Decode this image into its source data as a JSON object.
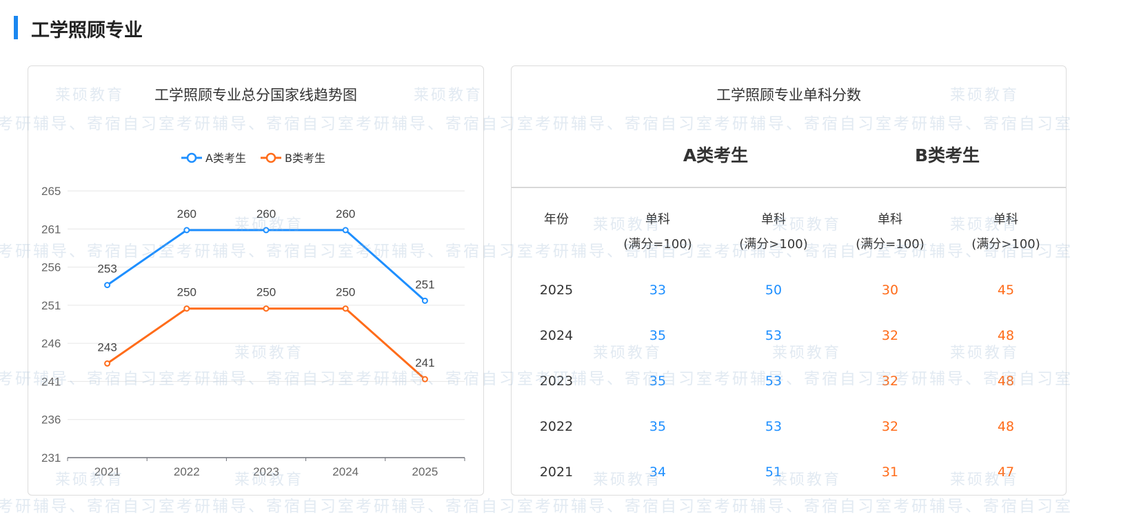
{
  "page": {
    "title": "工学照顾专业"
  },
  "colors": {
    "accent": "#1a87f0",
    "seriesA": "#1e8fff",
    "seriesB": "#ff6c1a"
  },
  "watermark": {
    "brand": "莱硕教育",
    "slogan": "考研辅导、寄宿自习室考研辅导、寄宿自习室考研辅导、寄宿自习室考研辅导、寄宿自习室考研辅导、寄宿自习室考研辅导、寄宿自习室"
  },
  "chart_data": {
    "type": "line",
    "title": "工学照顾专业总分国家线趋势图",
    "categories": [
      "2021",
      "2022",
      "2023",
      "2024",
      "2025"
    ],
    "series": [
      {
        "name": "A类考生",
        "values": [
          253,
          260,
          260,
          260,
          251
        ]
      },
      {
        "name": "B类考生",
        "values": [
          243,
          250,
          250,
          250,
          241
        ]
      }
    ],
    "yticks": [
      "231",
      "236",
      "241",
      "246",
      "251",
      "256",
      "261",
      "265"
    ],
    "ylim": [
      231,
      265
    ],
    "grid": true,
    "legend": "top-center",
    "data_labels": true
  },
  "table": {
    "title": "工学照顾专业单科分数",
    "groups": [
      "A类考生",
      "B类考生"
    ],
    "headers": [
      {
        "line1": "年份",
        "line2": ""
      },
      {
        "line1": "单科",
        "line2": "(满分=100)"
      },
      {
        "line1": "单科",
        "line2": "(满分>100)"
      },
      {
        "line1": "单科",
        "line2": "(满分=100)"
      },
      {
        "line1": "单科",
        "line2": "(满分>100)"
      }
    ],
    "rows": [
      [
        "2025",
        "33",
        "50",
        "30",
        "45"
      ],
      [
        "2024",
        "35",
        "53",
        "32",
        "48"
      ],
      [
        "2023",
        "35",
        "53",
        "32",
        "48"
      ],
      [
        "2022",
        "35",
        "53",
        "32",
        "48"
      ],
      [
        "2021",
        "34",
        "51",
        "31",
        "47"
      ]
    ]
  }
}
